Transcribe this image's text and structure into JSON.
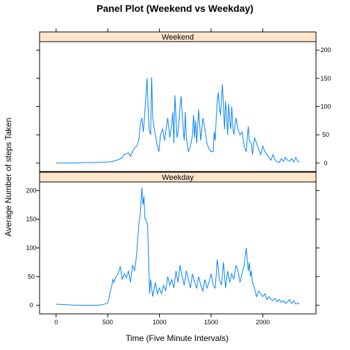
{
  "chart_data": {
    "type": "line",
    "title": "Panel Plot (Weekend vs Weekday)",
    "xlabel": "Time (Five Minute Intervals)",
    "ylabel": "Average Number of steps Taken",
    "xlim": [
      -160,
      2515
    ],
    "ylim": [
      -15,
      215
    ],
    "x_ticks": [
      0,
      500,
      1000,
      1500,
      2000
    ],
    "y_ticks": [
      0,
      50,
      100,
      150,
      200
    ],
    "colors": {
      "line": "#0080ff",
      "strip": "#ffe5cc"
    },
    "panels": [
      {
        "name": "Weekend",
        "y_axis_side": "right",
        "x": [
          0,
          100,
          200,
          300,
          400,
          500,
          550,
          600,
          630,
          660,
          700,
          720,
          750,
          780,
          800,
          815,
          830,
          845,
          860,
          870,
          880,
          890,
          900,
          915,
          925,
          935,
          955,
          965,
          980,
          995,
          1010,
          1030,
          1050,
          1080,
          1100,
          1120,
          1130,
          1140,
          1150,
          1170,
          1180,
          1190,
          1200,
          1210,
          1220,
          1230,
          1240,
          1250,
          1260,
          1280,
          1300,
          1320,
          1330,
          1340,
          1350,
          1360,
          1380,
          1400,
          1420,
          1440,
          1460,
          1480,
          1500,
          1520,
          1530,
          1540,
          1550,
          1560,
          1570,
          1580,
          1590,
          1600,
          1610,
          1620,
          1630,
          1640,
          1650,
          1660,
          1670,
          1680,
          1690,
          1700,
          1710,
          1720,
          1740,
          1760,
          1780,
          1800,
          1820,
          1840,
          1860,
          1870,
          1890,
          1900,
          1920,
          1940,
          1960,
          1980,
          2000,
          2020,
          2040,
          2060,
          2080,
          2100,
          2120,
          2140,
          2160,
          2180,
          2200,
          2220,
          2240,
          2260,
          2280,
          2300,
          2320,
          2340,
          2355
        ],
        "y": [
          0,
          0,
          0,
          1,
          1,
          2,
          3,
          6,
          8,
          15,
          18,
          12,
          25,
          30,
          40,
          70,
          80,
          55,
          95,
          120,
          150,
          100,
          60,
          50,
          152,
          80,
          55,
          45,
          30,
          20,
          50,
          60,
          40,
          80,
          45,
          70,
          90,
          35,
          120,
          45,
          55,
          75,
          100,
          118,
          90,
          60,
          40,
          90,
          45,
          20,
          30,
          50,
          85,
          45,
          75,
          35,
          95,
          40,
          80,
          60,
          35,
          25,
          20,
          20,
          55,
          40,
          80,
          110,
          125,
          100,
          85,
          110,
          140,
          100,
          60,
          110,
          85,
          50,
          105,
          75,
          60,
          100,
          65,
          50,
          80,
          60,
          50,
          55,
          30,
          20,
          65,
          40,
          35,
          15,
          45,
          35,
          25,
          15,
          30,
          20,
          15,
          10,
          5,
          15,
          5,
          2,
          1,
          8,
          3,
          10,
          5,
          3,
          8,
          2,
          10,
          3,
          2
        ]
      },
      {
        "name": "Weekday",
        "y_axis_side": "left",
        "x": [
          0,
          100,
          200,
          300,
          400,
          450,
          500,
          520,
          540,
          550,
          560,
          580,
          600,
          620,
          640,
          660,
          680,
          700,
          720,
          740,
          760,
          780,
          800,
          815,
          830,
          840,
          850,
          860,
          870,
          885,
          895,
          905,
          915,
          925,
          935,
          945,
          960,
          980,
          1000,
          1020,
          1040,
          1060,
          1080,
          1100,
          1120,
          1140,
          1160,
          1180,
          1200,
          1220,
          1240,
          1260,
          1280,
          1300,
          1320,
          1340,
          1360,
          1380,
          1400,
          1420,
          1440,
          1460,
          1480,
          1500,
          1520,
          1540,
          1560,
          1580,
          1600,
          1620,
          1640,
          1660,
          1680,
          1700,
          1720,
          1740,
          1760,
          1780,
          1800,
          1820,
          1840,
          1850,
          1860,
          1870,
          1880,
          1890,
          1900,
          1920,
          1940,
          1960,
          1980,
          2000,
          2020,
          2040,
          2060,
          2080,
          2100,
          2120,
          2140,
          2160,
          2180,
          2200,
          2220,
          2240,
          2260,
          2280,
          2300,
          2320,
          2340,
          2355
        ],
        "y": [
          2,
          1,
          0,
          0,
          0,
          1,
          4,
          20,
          35,
          45,
          40,
          50,
          55,
          68,
          45,
          55,
          48,
          60,
          40,
          70,
          60,
          90,
          140,
          160,
          205,
          175,
          190,
          150,
          150,
          140,
          80,
          20,
          45,
          30,
          15,
          25,
          40,
          20,
          30,
          20,
          35,
          25,
          50,
          35,
          45,
          30,
          60,
          40,
          70,
          50,
          35,
          60,
          45,
          30,
          55,
          40,
          30,
          50,
          35,
          25,
          45,
          30,
          40,
          55,
          35,
          30,
          80,
          45,
          35,
          75,
          30,
          60,
          40,
          55,
          45,
          70,
          60,
          40,
          55,
          70,
          100,
          80,
          60,
          75,
          50,
          60,
          40,
          30,
          15,
          25,
          20,
          15,
          20,
          10,
          15,
          10,
          8,
          12,
          6,
          10,
          5,
          8,
          3,
          6,
          10,
          3,
          8,
          2,
          4,
          2
        ]
      }
    ]
  }
}
